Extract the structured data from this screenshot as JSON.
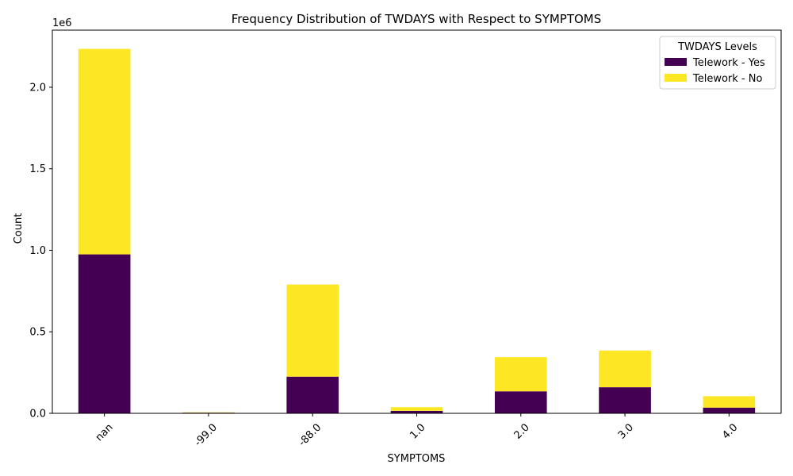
{
  "chart_data": {
    "type": "bar",
    "stacked": true,
    "title": "Frequency Distribution of TWDAYS with Respect to SYMPTOMS",
    "xlabel": "SYMPTOMS",
    "ylabel": "Count",
    "y_multiplier_label": "1e6",
    "ylim": [
      0,
      2350000
    ],
    "yticks": [
      0,
      500000,
      1000000,
      1500000,
      2000000
    ],
    "ytick_labels": [
      "0.0",
      "0.5",
      "1.0",
      "1.5",
      "2.0"
    ],
    "categories": [
      "nan",
      "-99.0",
      "-88.0",
      "1.0",
      "2.0",
      "3.0",
      "4.0"
    ],
    "series": [
      {
        "name": "Telework - Yes",
        "color": "#440154",
        "values": [
          975000,
          4000,
          225000,
          15000,
          135000,
          160000,
          35000
        ]
      },
      {
        "name": "Telework - No",
        "color": "#fde725",
        "values": [
          1260000,
          2000,
          565000,
          23000,
          210000,
          225000,
          70000
        ]
      }
    ],
    "legend": {
      "title": "TWDAYS Levels",
      "placement": "top-right"
    },
    "grid": false,
    "xtick_rotation": 45
  }
}
